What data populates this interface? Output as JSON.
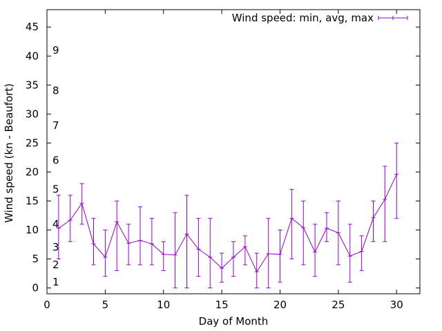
{
  "colors": {
    "series": "#9400d3",
    "axis": "#000000",
    "background": "#ffffff"
  },
  "chart_data": {
    "type": "line",
    "variant": "errorbars",
    "title": "",
    "xlabel": "Day of Month",
    "ylabel": "Wind speed (kn - Beaufort)",
    "xlim": [
      0,
      32
    ],
    "ylim": [
      -1,
      48
    ],
    "xticks": [
      0,
      5,
      10,
      15,
      20,
      25,
      30
    ],
    "yticks": [
      0,
      5,
      10,
      15,
      20,
      25,
      30,
      35,
      40,
      45
    ],
    "grid": false,
    "legend_position": "top-right",
    "beaufort_labels": [
      {
        "label": "1",
        "y": 1
      },
      {
        "label": "2",
        "y": 4
      },
      {
        "label": "3",
        "y": 7
      },
      {
        "label": "4",
        "y": 11
      },
      {
        "label": "5",
        "y": 17
      },
      {
        "label": "6",
        "y": 22
      },
      {
        "label": "7",
        "y": 28
      },
      {
        "label": "8",
        "y": 34
      },
      {
        "label": "9",
        "y": 41
      }
    ],
    "series": [
      {
        "name": "Wind speed: min, avg, max",
        "x": [
          1,
          2,
          3,
          4,
          5,
          6,
          7,
          8,
          9,
          10,
          11,
          12,
          13,
          14,
          15,
          16,
          17,
          18,
          19,
          20,
          21,
          22,
          23,
          24,
          25,
          26,
          27,
          28,
          29,
          30
        ],
        "avg": [
          10.3,
          11.7,
          14.6,
          7.6,
          5.3,
          11.4,
          7.7,
          8.2,
          7.6,
          5.8,
          5.7,
          9.3,
          6.7,
          5.3,
          3.4,
          5.3,
          7.1,
          2.8,
          5.9,
          5.8,
          12.0,
          10.4,
          6.2,
          10.3,
          9.5,
          5.5,
          6.3,
          12.1,
          15.3,
          19.6
        ],
        "min": [
          5,
          8,
          11,
          4,
          2,
          3,
          4,
          4,
          4,
          3,
          0,
          0,
          2,
          0,
          1,
          2,
          4,
          0,
          0,
          1,
          5,
          4,
          2,
          8,
          4,
          1,
          3,
          8,
          8,
          12
        ],
        "max": [
          16,
          16,
          18,
          12,
          10,
          15,
          11,
          14,
          12,
          8,
          13,
          16,
          12,
          12,
          6,
          8,
          9,
          6,
          12,
          10,
          17,
          15,
          11,
          13,
          15,
          11,
          9,
          15,
          21,
          25
        ]
      }
    ]
  }
}
